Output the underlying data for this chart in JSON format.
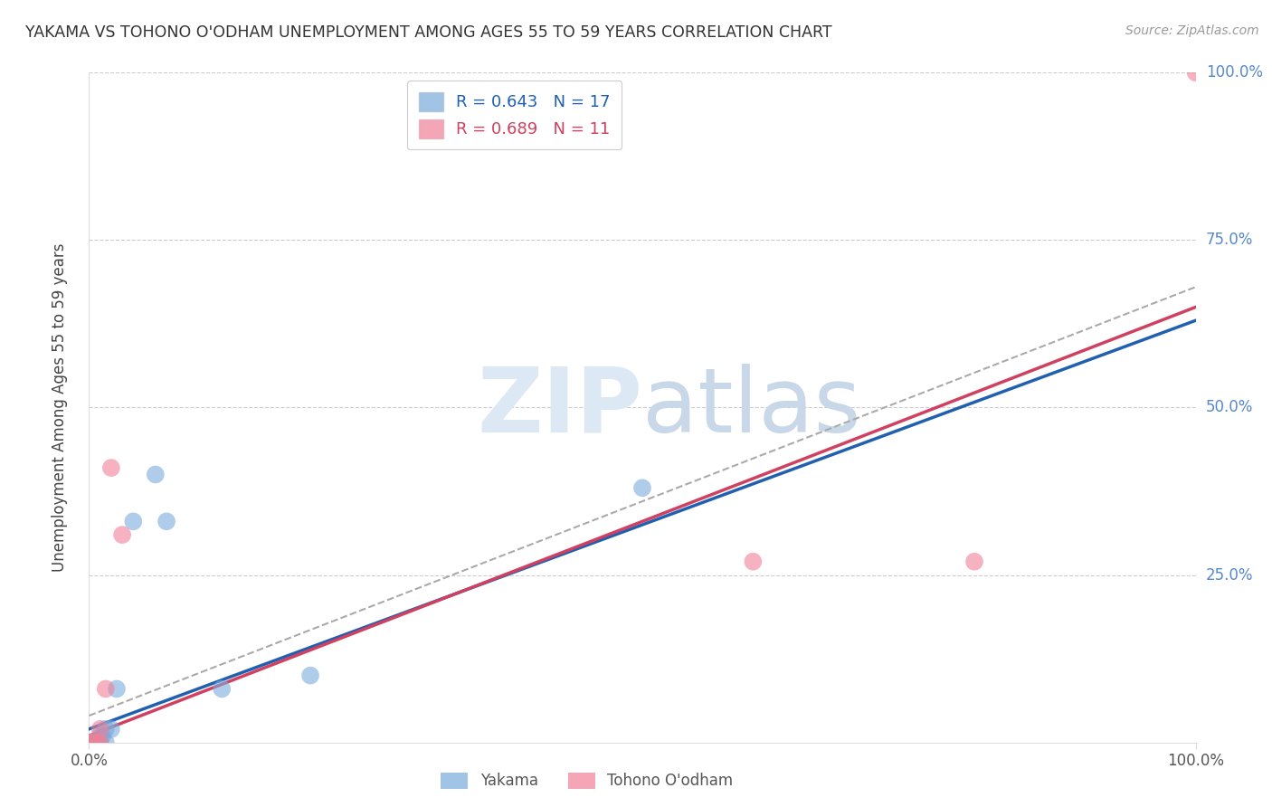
{
  "title": "YAKAMA VS TOHONO O'ODHAM UNEMPLOYMENT AMONG AGES 55 TO 59 YEARS CORRELATION CHART",
  "source": "Source: ZipAtlas.com",
  "ylabel": "Unemployment Among Ages 55 to 59 years",
  "xlim": [
    0,
    1.0
  ],
  "ylim": [
    0,
    1.0
  ],
  "background_color": "#ffffff",
  "watermark": "ZIPatlas",
  "yakama_points": [
    [
      0.0,
      0.0
    ],
    [
      0.003,
      0.0
    ],
    [
      0.005,
      0.0
    ],
    [
      0.007,
      0.0
    ],
    [
      0.01,
      0.0
    ],
    [
      0.01,
      0.01
    ],
    [
      0.012,
      0.01
    ],
    [
      0.015,
      0.0
    ],
    [
      0.015,
      0.02
    ],
    [
      0.02,
      0.02
    ],
    [
      0.025,
      0.08
    ],
    [
      0.04,
      0.33
    ],
    [
      0.06,
      0.4
    ],
    [
      0.07,
      0.33
    ],
    [
      0.12,
      0.08
    ],
    [
      0.2,
      0.1
    ],
    [
      0.5,
      0.38
    ]
  ],
  "tohono_points": [
    [
      0.0,
      0.0
    ],
    [
      0.005,
      0.0
    ],
    [
      0.007,
      0.0
    ],
    [
      0.01,
      0.0
    ],
    [
      0.01,
      0.02
    ],
    [
      0.015,
      0.08
    ],
    [
      0.02,
      0.41
    ],
    [
      0.03,
      0.31
    ],
    [
      0.6,
      0.27
    ],
    [
      0.8,
      0.27
    ],
    [
      1.0,
      1.0
    ]
  ],
  "yakama_line": {
    "x0": 0,
    "y0": 0.02,
    "x1": 1.0,
    "y1": 0.63
  },
  "tohono_line": {
    "x0": 0,
    "y0": 0.01,
    "x1": 1.0,
    "y1": 0.65
  },
  "dashed_line": {
    "x0": 0,
    "y0": 0.04,
    "x1": 1.0,
    "y1": 0.68
  },
  "yakama_color": "#7aabdc",
  "tohono_color": "#f08098",
  "yakama_line_color": "#2060b0",
  "tohono_line_color": "#d04060",
  "dashed_line_color": "#aaaaaa",
  "grid_color": "#cccccc",
  "title_color": "#333333",
  "source_color": "#999999",
  "right_tick_color": "#5588cc"
}
